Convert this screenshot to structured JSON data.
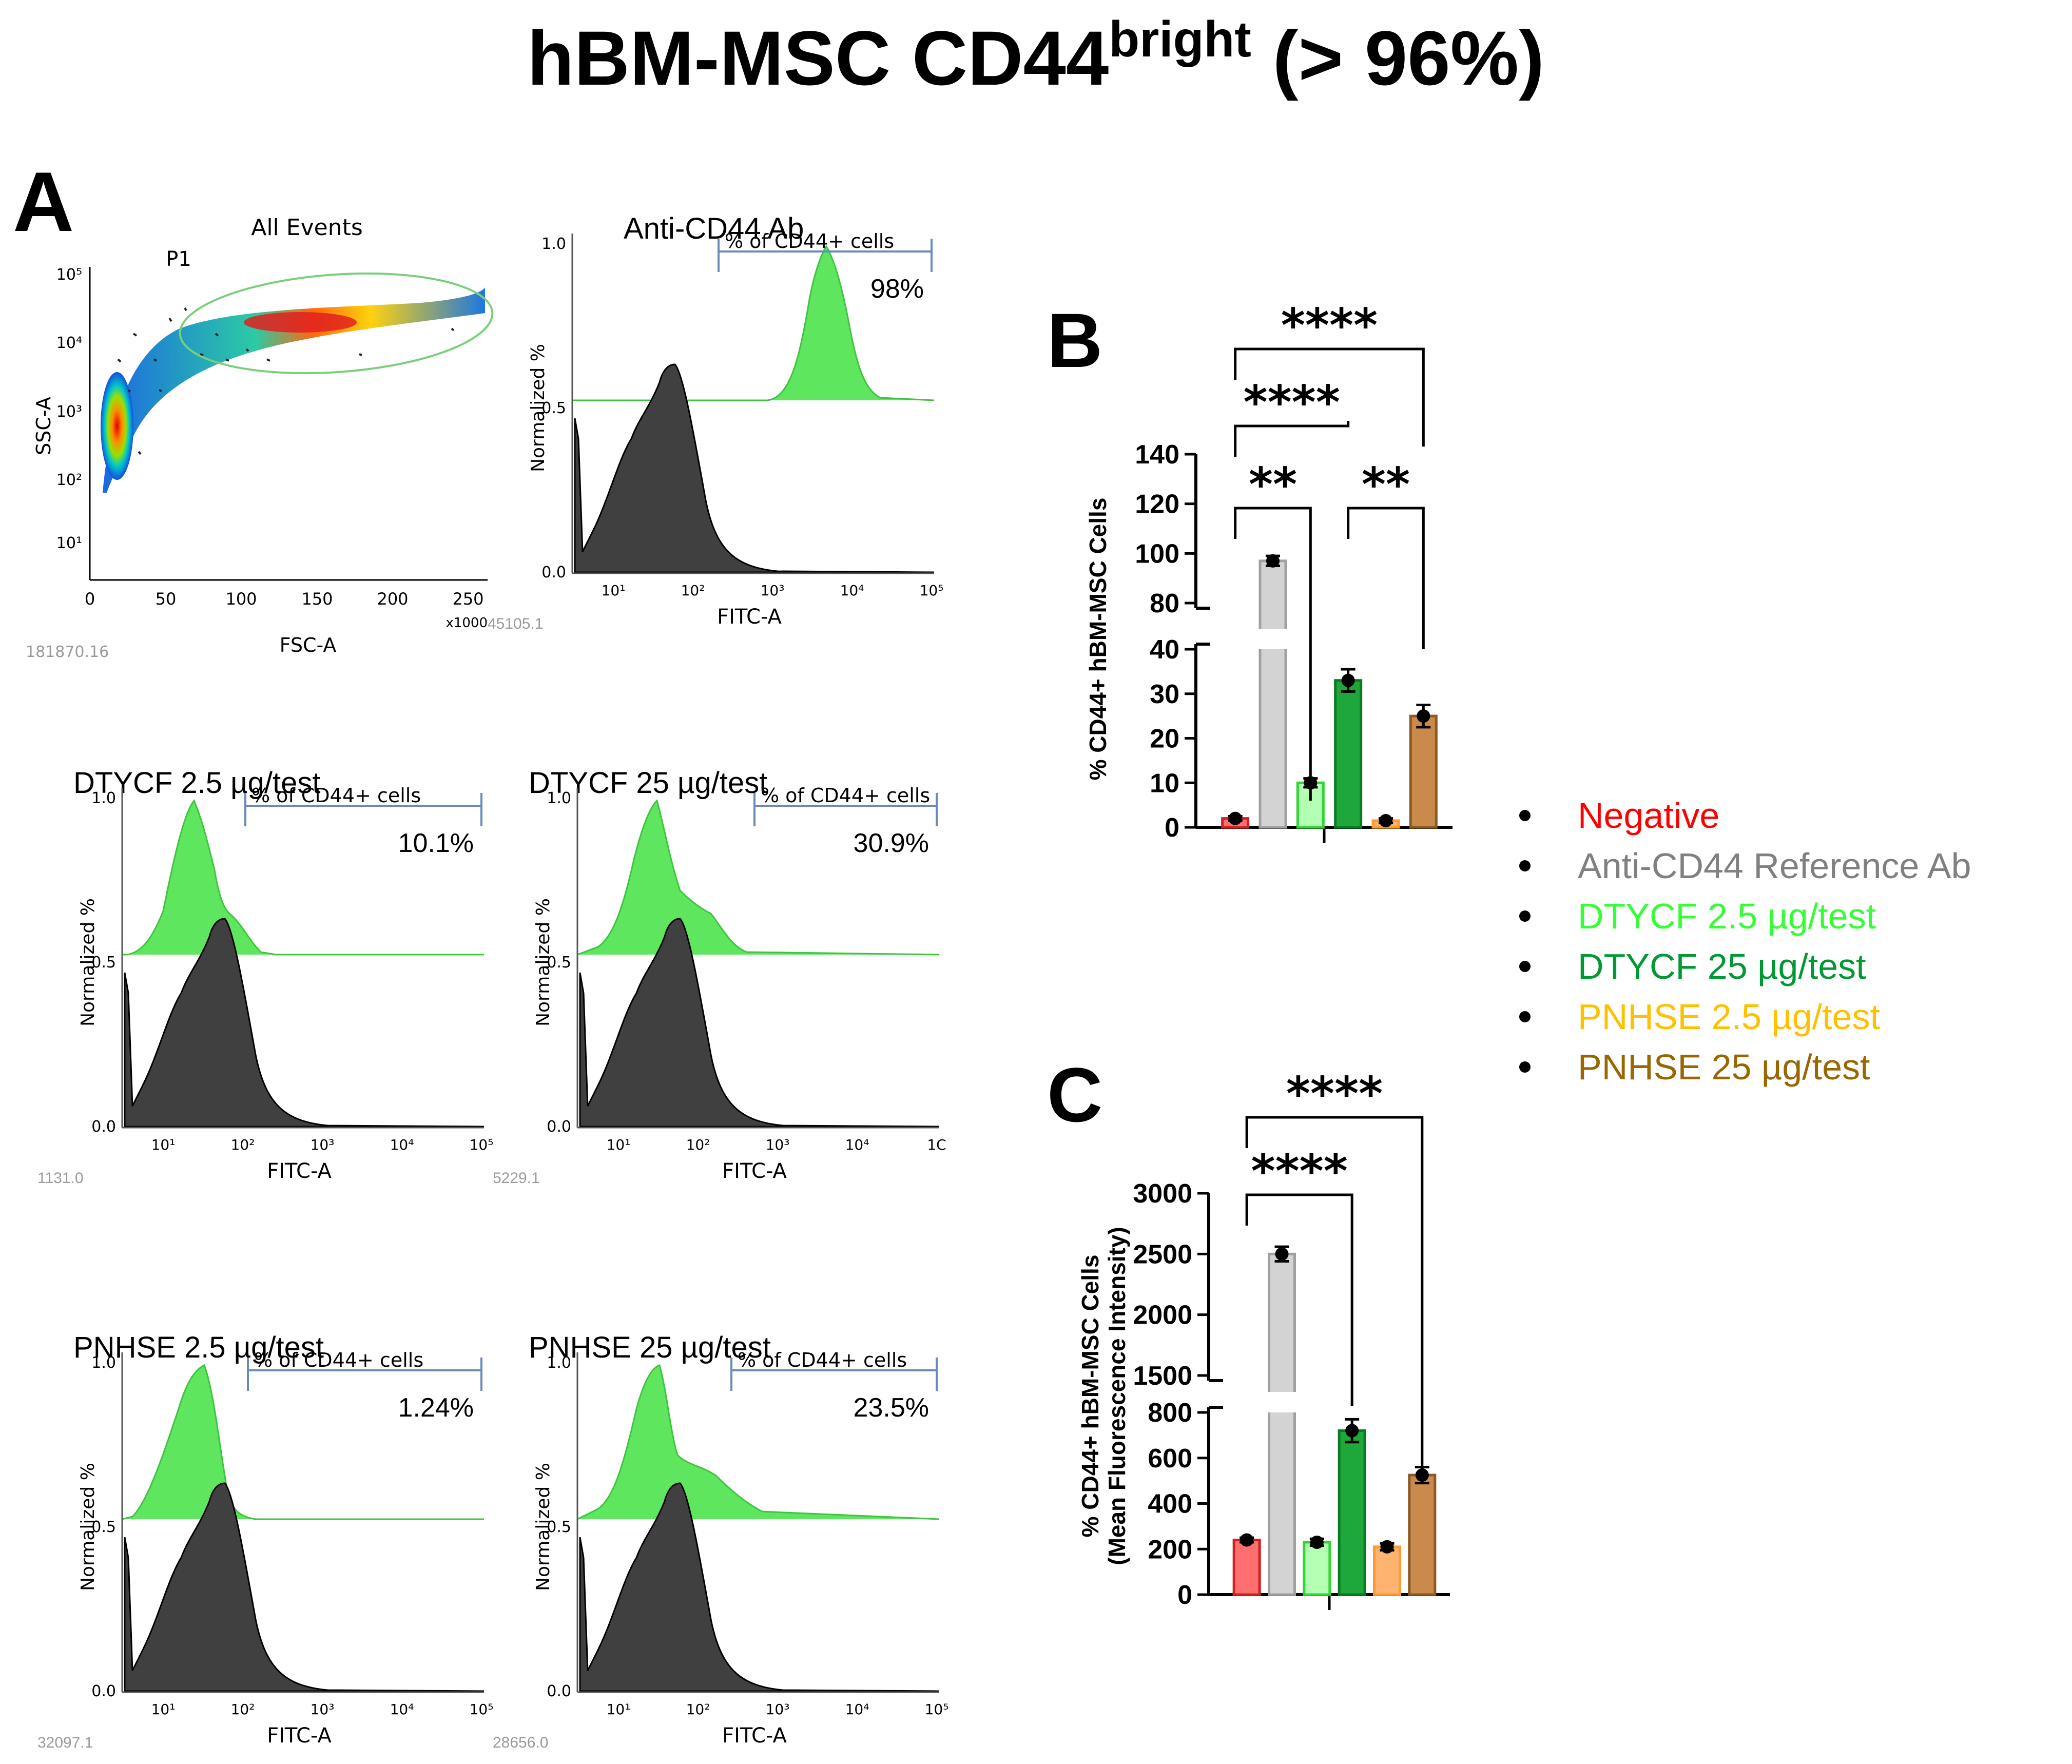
{
  "figure": {
    "title_main": "hBM-MSC CD44",
    "title_sup": "bright",
    "title_tail": " (> 96%)"
  },
  "panel_a": {
    "letter": "A",
    "scatter": {
      "title": "All Events",
      "gate": "P1",
      "xlabel": "FSC-A",
      "ylabel": "SSC-A",
      "x_ticks": [
        "0",
        "50",
        "100",
        "150",
        "200",
        "250"
      ],
      "x_unit": "x1000",
      "y_ticks": [
        "10⁵",
        "10⁴",
        "10³",
        "10²",
        "10¹"
      ],
      "footer": "181870.16"
    },
    "hist_axes": {
      "ylabel": "Normalized %",
      "xlabel": "FITC-A",
      "y_ticks": [
        "1.0",
        "0.5",
        "0.0"
      ],
      "x_ticks": [
        "10¹",
        "10²",
        "10³",
        "10⁴",
        "10⁵"
      ],
      "gate_label": "% of CD44+ cells"
    },
    "histograms": [
      {
        "title": "Anti-CD44 Ab",
        "percent": "98%",
        "footer": "45105.1",
        "last_tick": "10⁵"
      },
      {
        "title": "DTYCF 2.5 µg/test",
        "percent": "10.1%",
        "footer": "1131.0",
        "last_tick": "10⁵"
      },
      {
        "title": "DTYCF 25 µg/test",
        "percent": "30.9%",
        "footer": "5229.1",
        "last_tick": "1C"
      },
      {
        "title": "PNHSE 2.5 µg/test",
        "percent": "1.24%",
        "footer": "32097.1",
        "last_tick": "10⁵"
      },
      {
        "title": "PNHSE 25 µg/test",
        "percent": "23.5%",
        "footer": "28656.0",
        "last_tick": "10⁵"
      }
    ]
  },
  "colors": {
    "negative": "#ff0000",
    "reference": "#808080",
    "dtycf_low": "#33ff33",
    "dtycf_high": "#009933",
    "pnhse_low": "#ffc000",
    "pnhse_high": "#996600",
    "bar_neg": "#ff6f6f",
    "bar_ref": "#d3d3d3",
    "bar_dl": "#b3ffb3",
    "bar_dh": "#1fa83a",
    "bar_pl": "#ffb370",
    "bar_ph": "#c98a4b",
    "green_fill": "#5ee65e",
    "gray_fill": "#404040"
  },
  "legend": {
    "items": [
      {
        "label": "Negative",
        "color": "#ff0000"
      },
      {
        "label": "Anti-CD44 Reference Ab",
        "color": "#808080"
      },
      {
        "label": "DTYCF 2.5 µg/test",
        "color": "#33ff33"
      },
      {
        "label": "DTYCF 25 µg/test",
        "color": "#009933"
      },
      {
        "label": "PNHSE 2.5 µg/test",
        "color": "#ffc000"
      },
      {
        "label": "PNHSE 25 µg/test",
        "color": "#996600"
      }
    ]
  },
  "chart_data": [
    {
      "panel": "B",
      "type": "bar",
      "ylabel": "% CD44+ hBM-MSC Cells",
      "categories": [
        "Negative",
        "Anti-CD44 Reference Ab",
        "DTYCF 2.5 µg/test",
        "DTYCF 25 µg/test",
        "PNHSE 2.5 µg/test",
        "PNHSE 25 µg/test"
      ],
      "values": [
        2,
        97,
        10,
        33,
        1.5,
        25
      ],
      "errors": [
        0.5,
        2,
        1,
        2.5,
        0.5,
        2.5
      ],
      "axis_break": {
        "lower": [
          0,
          40
        ],
        "upper": [
          80,
          140
        ]
      },
      "y_ticks": [
        "0",
        "10",
        "20",
        "30",
        "40",
        "80",
        "100",
        "120",
        "140"
      ],
      "significance": [
        {
          "from": 0,
          "to": 2,
          "label": "**"
        },
        {
          "from": 3,
          "to": 5,
          "label": "**"
        },
        {
          "from": 0,
          "to": 3,
          "label": "****"
        },
        {
          "from": 0,
          "to": 5,
          "label": "****"
        }
      ]
    },
    {
      "panel": "C",
      "type": "bar",
      "ylabel": "% CD44+ hBM-MSC Cells",
      "ylabel2": "(Mean Fluorescence Intensity)",
      "categories": [
        "Negative",
        "Anti-CD44 Reference Ab",
        "DTYCF 2.5 µg/test",
        "DTYCF 25 µg/test",
        "PNHSE 2.5 µg/test",
        "PNHSE 25 µg/test"
      ],
      "values": [
        240,
        2500,
        230,
        720,
        210,
        525
      ],
      "errors": [
        10,
        60,
        15,
        50,
        15,
        35
      ],
      "axis_break": {
        "lower": [
          0,
          800
        ],
        "upper": [
          1500,
          3000
        ]
      },
      "y_ticks": [
        "0",
        "200",
        "400",
        "600",
        "800",
        "1500",
        "2000",
        "2500",
        "3000"
      ],
      "significance": [
        {
          "from": 0,
          "to": 3,
          "label": "****"
        },
        {
          "from": 0,
          "to": 5,
          "label": "****"
        }
      ]
    }
  ]
}
